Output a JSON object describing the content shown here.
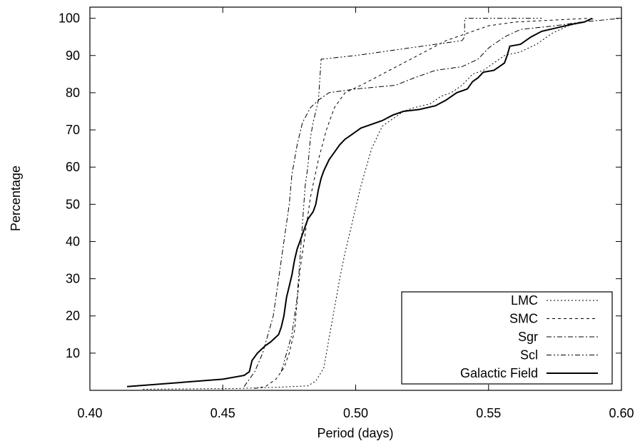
{
  "chart_data": {
    "type": "line",
    "title": "",
    "xlabel": "Period (days)",
    "ylabel": "Percentage",
    "xlim": [
      0.4,
      0.6
    ],
    "ylim": [
      0,
      103
    ],
    "x_ticks": [
      0.4,
      0.45,
      0.5,
      0.55,
      0.6
    ],
    "x_tick_labels": [
      "0.40",
      "0.45",
      "0.50",
      "0.55",
      "0.60"
    ],
    "y_ticks": [
      10,
      20,
      30,
      40,
      50,
      60,
      70,
      80,
      90,
      100
    ],
    "y_tick_labels": [
      "10",
      "20",
      "30",
      "40",
      "50",
      "60",
      "70",
      "80",
      "90",
      "100"
    ],
    "grid": false,
    "legend_position": "bottom-right",
    "series": [
      {
        "name": "LMC",
        "dash": "dotted",
        "points": [
          [
            0.42,
            0.3
          ],
          [
            0.455,
            0.5
          ],
          [
            0.47,
            0.8
          ],
          [
            0.482,
            1.2
          ],
          [
            0.485,
            2.5
          ],
          [
            0.488,
            6
          ],
          [
            0.49,
            14
          ],
          [
            0.492,
            22
          ],
          [
            0.494,
            30
          ],
          [
            0.496,
            37
          ],
          [
            0.498,
            43
          ],
          [
            0.5,
            49
          ],
          [
            0.502,
            55
          ],
          [
            0.504,
            60
          ],
          [
            0.506,
            65
          ],
          [
            0.508,
            68
          ],
          [
            0.51,
            71
          ],
          [
            0.514,
            73
          ],
          [
            0.518,
            75
          ],
          [
            0.522,
            76
          ],
          [
            0.528,
            77
          ],
          [
            0.532,
            79
          ],
          [
            0.536,
            80
          ],
          [
            0.54,
            82
          ],
          [
            0.544,
            85
          ],
          [
            0.548,
            86
          ],
          [
            0.552,
            88
          ],
          [
            0.556,
            90
          ],
          [
            0.562,
            91
          ],
          [
            0.568,
            93
          ],
          [
            0.574,
            96
          ],
          [
            0.58,
            98
          ],
          [
            0.586,
            99
          ],
          [
            0.59,
            100
          ]
        ]
      },
      {
        "name": "SMC",
        "dash": "dashed",
        "points": [
          [
            0.462,
            0.5
          ],
          [
            0.466,
            1
          ],
          [
            0.47,
            3
          ],
          [
            0.473,
            6
          ],
          [
            0.475,
            10
          ],
          [
            0.477,
            16
          ],
          [
            0.478,
            24
          ],
          [
            0.479,
            32
          ],
          [
            0.481,
            42
          ],
          [
            0.483,
            52
          ],
          [
            0.486,
            62
          ],
          [
            0.489,
            70
          ],
          [
            0.492,
            76
          ],
          [
            0.496,
            80
          ],
          [
            0.502,
            82
          ],
          [
            0.51,
            85
          ],
          [
            0.518,
            88
          ],
          [
            0.526,
            91
          ],
          [
            0.534,
            94
          ],
          [
            0.542,
            96
          ],
          [
            0.55,
            98
          ],
          [
            0.56,
            99
          ],
          [
            0.574,
            99.5
          ],
          [
            0.588,
            100
          ]
        ]
      },
      {
        "name": "Sgr",
        "dash": "dash-dot",
        "points": [
          [
            0.458,
            1
          ],
          [
            0.462,
            5
          ],
          [
            0.465,
            10
          ],
          [
            0.467,
            15
          ],
          [
            0.469,
            20
          ],
          [
            0.471,
            30
          ],
          [
            0.473,
            40
          ],
          [
            0.475,
            50
          ],
          [
            0.476,
            58
          ],
          [
            0.478,
            66
          ],
          [
            0.48,
            72
          ],
          [
            0.483,
            76
          ],
          [
            0.486,
            78
          ],
          [
            0.49,
            80
          ],
          [
            0.5,
            81
          ],
          [
            0.515,
            82
          ],
          [
            0.522,
            84
          ],
          [
            0.53,
            86
          ],
          [
            0.54,
            87
          ],
          [
            0.546,
            89
          ],
          [
            0.55,
            92
          ],
          [
            0.556,
            95
          ],
          [
            0.562,
            97
          ],
          [
            0.575,
            98
          ],
          [
            0.585,
            99
          ],
          [
            0.6,
            100
          ]
        ]
      },
      {
        "name": "Scl",
        "dash": "dash-dot-dot",
        "points": [
          [
            0.472,
            5
          ],
          [
            0.474,
            10
          ],
          [
            0.476,
            15
          ],
          [
            0.478,
            25
          ],
          [
            0.479,
            35
          ],
          [
            0.48,
            45
          ],
          [
            0.481,
            55
          ],
          [
            0.482,
            60
          ],
          [
            0.483,
            68
          ],
          [
            0.484,
            72
          ],
          [
            0.485,
            75
          ],
          [
            0.486,
            78
          ],
          [
            0.487,
            89
          ],
          [
            0.5,
            90
          ],
          [
            0.52,
            92
          ],
          [
            0.54,
            94
          ],
          [
            0.541,
            95
          ],
          [
            0.541,
            100
          ],
          [
            0.57,
            100
          ]
        ]
      },
      {
        "name": "Galactic Field",
        "dash": "solid",
        "points": [
          [
            0.414,
            1
          ],
          [
            0.45,
            3
          ],
          [
            0.458,
            4
          ],
          [
            0.46,
            5
          ],
          [
            0.461,
            8
          ],
          [
            0.463,
            10
          ],
          [
            0.466,
            12
          ],
          [
            0.468,
            13
          ],
          [
            0.471,
            15
          ],
          [
            0.472,
            17
          ],
          [
            0.473,
            20
          ],
          [
            0.474,
            25
          ],
          [
            0.475,
            28
          ],
          [
            0.476,
            31
          ],
          [
            0.477,
            35
          ],
          [
            0.478,
            38
          ],
          [
            0.479,
            40
          ],
          [
            0.48,
            42
          ],
          [
            0.481,
            44
          ],
          [
            0.482,
            46
          ],
          [
            0.484,
            48
          ],
          [
            0.485,
            50
          ],
          [
            0.486,
            54
          ],
          [
            0.487,
            57
          ],
          [
            0.488,
            59
          ],
          [
            0.49,
            62
          ],
          [
            0.492,
            64
          ],
          [
            0.494,
            66
          ],
          [
            0.496,
            67.5
          ],
          [
            0.498,
            68.5
          ],
          [
            0.5,
            69.5
          ],
          [
            0.502,
            70.5
          ],
          [
            0.506,
            71.5
          ],
          [
            0.51,
            72.5
          ],
          [
            0.514,
            74
          ],
          [
            0.518,
            75
          ],
          [
            0.524,
            75.5
          ],
          [
            0.53,
            76.5
          ],
          [
            0.534,
            78
          ],
          [
            0.538,
            80
          ],
          [
            0.542,
            81
          ],
          [
            0.544,
            83
          ],
          [
            0.546,
            84
          ],
          [
            0.548,
            85.5
          ],
          [
            0.552,
            86
          ],
          [
            0.554,
            87
          ],
          [
            0.556,
            88
          ],
          [
            0.557,
            90
          ],
          [
            0.558,
            92.5
          ],
          [
            0.562,
            93
          ],
          [
            0.566,
            95
          ],
          [
            0.57,
            96.5
          ],
          [
            0.576,
            97.5
          ],
          [
            0.582,
            98.5
          ],
          [
            0.586,
            99
          ],
          [
            0.589,
            100
          ]
        ]
      }
    ]
  }
}
